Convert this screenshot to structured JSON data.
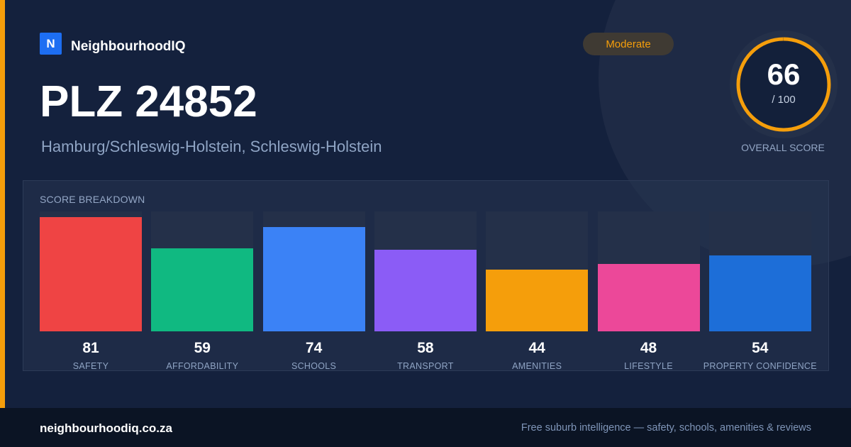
{
  "brand": {
    "logo_letter": "N",
    "name": "NeighbourhoodIQ"
  },
  "header": {
    "title": "PLZ 24852",
    "subtitle": "Hamburg/Schleswig-Holstein, Schleswig-Holstein",
    "badge": "Moderate"
  },
  "overall": {
    "value": "66",
    "max_text": "/ 100",
    "fraction": 0.66,
    "label": "OVERALL SCORE",
    "color": "#f59e0b"
  },
  "breakdown": {
    "title": "SCORE BREAKDOWN",
    "items": [
      {
        "value": "81",
        "label": "SAFETY",
        "color": "#ef4444"
      },
      {
        "value": "59",
        "label": "AFFORDABILITY",
        "color": "#10b981"
      },
      {
        "value": "74",
        "label": "SCHOOLS",
        "color": "#3b82f6"
      },
      {
        "value": "58",
        "label": "TRANSPORT",
        "color": "#8b5cf6"
      },
      {
        "value": "44",
        "label": "AMENITIES",
        "color": "#f59e0b"
      },
      {
        "value": "48",
        "label": "LIFESTYLE",
        "color": "#ec4899"
      },
      {
        "value": "54",
        "label": "PROPERTY CONFIDENCE",
        "color": "#1d6ed8"
      }
    ]
  },
  "footer": {
    "site": "neighbourhoodiq.co.za",
    "tagline": "Free suburb intelligence — safety, schools, amenities & reviews"
  }
}
